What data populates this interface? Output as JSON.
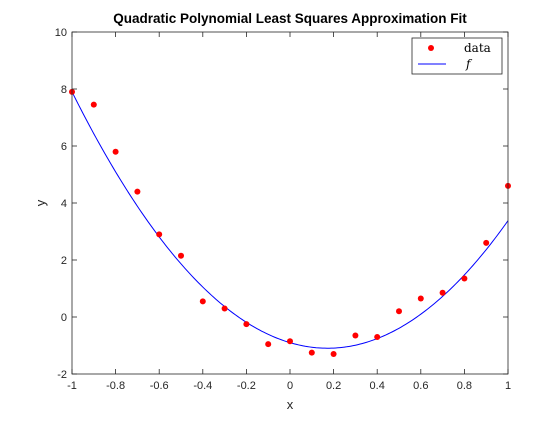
{
  "chart_data": {
    "type": "scatter",
    "title": "Quadratic Polynomial Least Squares Approximation Fit",
    "xlabel": "x",
    "ylabel": "y",
    "xlim": [
      -1,
      1
    ],
    "ylim": [
      -2,
      10
    ],
    "xticks": [
      -1,
      -0.8,
      -0.6,
      -0.4,
      -0.2,
      0,
      0.2,
      0.4,
      0.6,
      0.8,
      1
    ],
    "yticks": [
      -2,
      0,
      2,
      4,
      6,
      8,
      10
    ],
    "grid": false,
    "legend": {
      "position": "top-right",
      "entries": [
        "data",
        "f"
      ]
    },
    "series": [
      {
        "name": "data",
        "kind": "markers",
        "color": "#ff0000",
        "x": [
          -1,
          -0.9,
          -0.8,
          -0.7,
          -0.6,
          -0.5,
          -0.4,
          -0.3,
          -0.2,
          -0.1,
          0,
          0.1,
          0.2,
          0.3,
          0.4,
          0.5,
          0.6,
          0.7,
          0.8,
          0.9,
          1
        ],
        "y": [
          7.9,
          7.45,
          5.8,
          4.4,
          2.9,
          2.15,
          0.55,
          0.3,
          -0.25,
          -0.95,
          -0.85,
          -1.25,
          -1.3,
          -0.65,
          -0.7,
          0.2,
          0.65,
          0.85,
          1.35,
          2.6,
          4.6
        ]
      },
      {
        "name": "f",
        "kind": "line",
        "color": "#0000ff",
        "coefficients": {
          "a": 6.54,
          "b": -2.26,
          "c": -0.9
        }
      }
    ]
  }
}
